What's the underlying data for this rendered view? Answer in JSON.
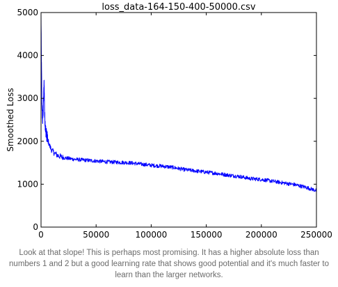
{
  "caption": "Look at that slope! This is perhaps most promising. It has a higher absolute loss than numbers 1 and 2 but a good learning rate that shows good potential and it's much faster to learn than the larger networks.",
  "chart_data": {
    "type": "line",
    "title": "loss_data-164-150-400-50000.csv",
    "xlabel": "",
    "ylabel": "Smoothed Loss",
    "xlim": [
      0,
      250000
    ],
    "ylim": [
      0,
      5000
    ],
    "xticks": [
      0,
      50000,
      100000,
      150000,
      200000,
      250000
    ],
    "yticks": [
      0,
      1000,
      2000,
      3000,
      4000,
      5000
    ],
    "grid": false,
    "line_color": "#0000ff",
    "series": [
      {
        "x": [
          0,
          300,
          800,
          1500,
          2200,
          2800,
          3300,
          4000,
          5000,
          6500,
          8000,
          10000,
          12500,
          15000,
          20000,
          25000,
          30000,
          35000,
          40000,
          45000,
          50000,
          60000,
          70000,
          80000,
          90000,
          100000,
          110000,
          120000,
          130000,
          140000,
          150000,
          160000,
          170000,
          180000,
          190000,
          200000,
          210000,
          220000,
          230000,
          240000,
          250000
        ],
        "y": [
          4950,
          4000,
          2900,
          2450,
          2900,
          3400,
          2600,
          2300,
          2150,
          2000,
          1880,
          1780,
          1720,
          1670,
          1620,
          1600,
          1580,
          1570,
          1560,
          1550,
          1540,
          1520,
          1510,
          1500,
          1470,
          1440,
          1420,
          1390,
          1340,
          1310,
          1280,
          1250,
          1210,
          1180,
          1130,
          1110,
          1070,
          1030,
          990,
          930,
          850
        ]
      }
    ]
  }
}
